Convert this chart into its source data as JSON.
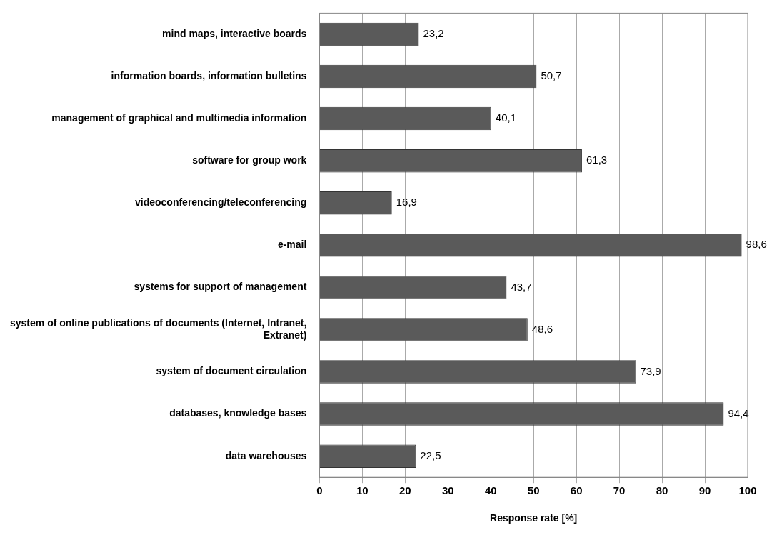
{
  "chart_data": {
    "type": "bar",
    "orientation": "horizontal",
    "xlabel": "Response rate [%]",
    "categories": [
      "mind maps, interactive boards",
      "information boards, information bulletins",
      "management of graphical and multimedia information",
      "software for group work",
      "videoconferencing/teleconferencing",
      "e-mail",
      "systems for support of management",
      "system of online publications of documents (Internet, Intranet, Extranet)",
      "system of document circulation",
      "databases, knowledge bases",
      "data warehouses"
    ],
    "values": [
      23.2,
      50.7,
      40.1,
      61.3,
      16.9,
      98.6,
      43.7,
      48.6,
      73.9,
      94.4,
      22.5
    ],
    "value_labels": [
      "23,2",
      "50,7",
      "40,1",
      "61,3",
      "16,9",
      "98,6",
      "43,7",
      "48,6",
      "73,9",
      "94,4",
      "22,5"
    ],
    "color": "#5a5a5a",
    "xlim": [
      0,
      100
    ],
    "xticks": [
      0,
      10,
      20,
      30,
      40,
      50,
      60,
      70,
      80,
      90,
      100
    ],
    "grid": "x",
    "legend": false
  }
}
